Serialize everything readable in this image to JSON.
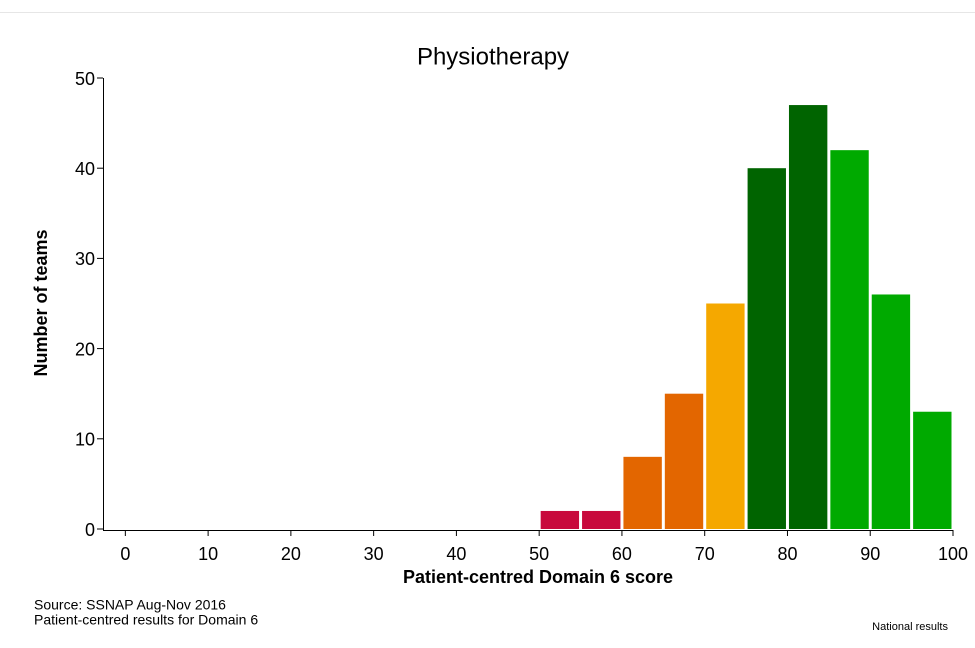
{
  "chart_data": {
    "type": "histogram",
    "title": "Physiotherapy",
    "x_label": "Patient-centred Domain 6 score",
    "y_label": "Number of teams",
    "bins": [
      50,
      55,
      60,
      65,
      70,
      75,
      80,
      85,
      90,
      95,
      100
    ],
    "values": [
      2,
      2,
      8,
      15,
      25,
      40,
      47,
      42,
      26,
      13
    ],
    "colors": [
      "#c8093c",
      "#c8093c",
      "#e36600",
      "#e36600",
      "#f5a800",
      "#006400",
      "#006400",
      "#00aa00",
      "#00aa00",
      "#00aa00"
    ],
    "xlim": [
      -2.7,
      100
    ],
    "xticks": [
      0,
      10,
      20,
      30,
      40,
      50,
      60,
      70,
      80,
      90,
      100
    ],
    "ylim": [
      0,
      50
    ],
    "yticks": [
      0,
      10,
      20,
      30,
      40,
      50
    ],
    "source": "Source: SSNAP Aug-Nov 2016",
    "note": "Patient-centred results for Domain 6",
    "footer": "National results"
  }
}
